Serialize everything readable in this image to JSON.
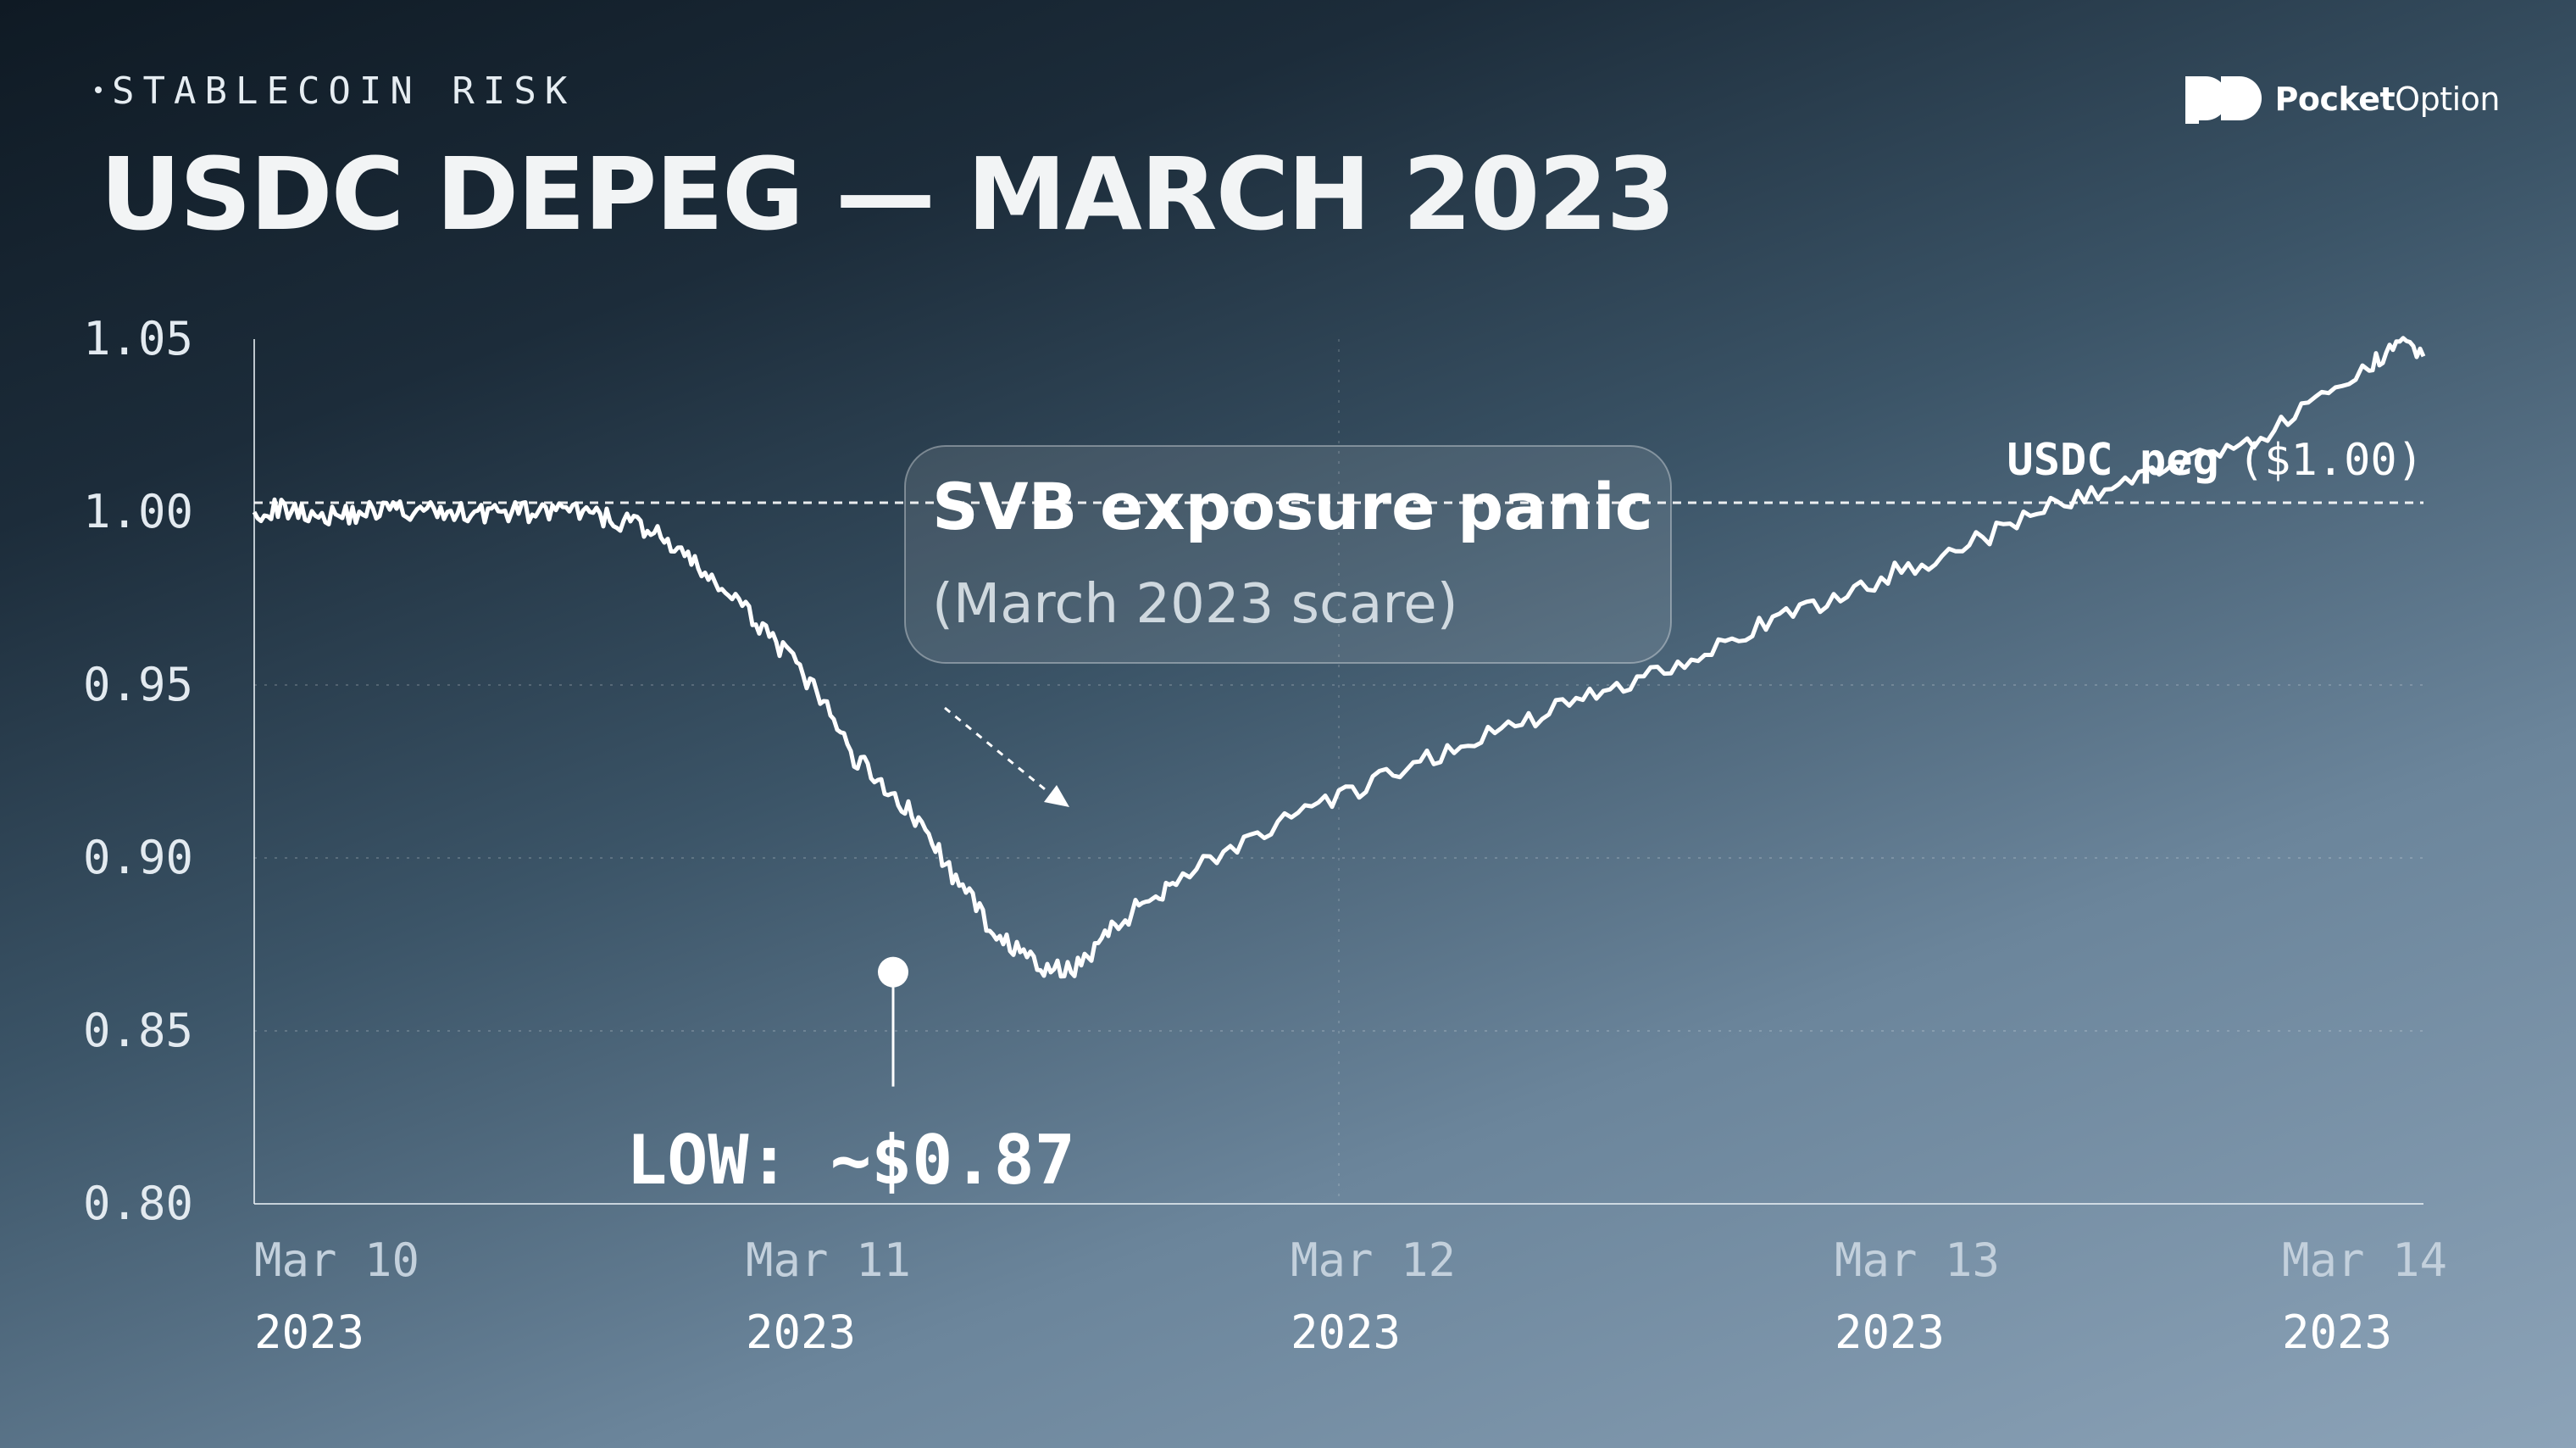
{
  "header": {
    "kicker": "STABLECOIN RISK",
    "title": "USDC DEPEG — MARCH 2023"
  },
  "brand": {
    "name_bold": "Pocket",
    "name_regular": "Option",
    "icon": "pocketoption-logo-icon"
  },
  "colors": {
    "line": "#ffffff",
    "peg_line": "#ffffff",
    "text_muted": "#c7d5e0"
  },
  "chart_data": {
    "type": "line",
    "title": "USDC DEPEG — MARCH 2023",
    "xlabel": "",
    "ylabel": "",
    "ylim": [
      0.8,
      1.05
    ],
    "y_ticks": [
      "1.05",
      "1.00",
      "0.95",
      "0.90",
      "0.85",
      "0.80"
    ],
    "x_ticks": [
      {
        "label": "Mar 10",
        "year": "2023",
        "x": 0
      },
      {
        "label": "Mar 11",
        "year": "2023",
        "x": 1
      },
      {
        "label": "Mar 12",
        "year": "2023",
        "x": 2
      },
      {
        "label": "Mar 13",
        "year": "2023",
        "x": 3
      },
      {
        "label": "Mar 14",
        "year": "2023",
        "x": 4
      }
    ],
    "grid": "dotted",
    "series": [
      {
        "points": [
          [
            0.0,
            1.0
          ],
          [
            0.05,
            1.001
          ],
          [
            0.1,
            1.0
          ],
          [
            0.15,
            0.999
          ],
          [
            0.2,
            1.0
          ],
          [
            0.25,
            1.001
          ],
          [
            0.3,
            1.0
          ],
          [
            0.35,
            1.0
          ],
          [
            0.4,
            1.0
          ],
          [
            0.45,
            1.0
          ],
          [
            0.5,
            1.0
          ],
          [
            0.55,
            1.0
          ],
          [
            0.6,
            1.0
          ],
          [
            0.65,
            0.998
          ],
          [
            0.7,
            0.997
          ],
          [
            0.75,
            0.993
          ],
          [
            0.8,
            0.986
          ],
          [
            0.85,
            0.98
          ],
          [
            0.9,
            0.972
          ],
          [
            0.95,
            0.965
          ],
          [
            1.0,
            0.955
          ],
          [
            1.05,
            0.945
          ],
          [
            1.1,
            0.93
          ],
          [
            1.15,
            0.923
          ],
          [
            1.2,
            0.915
          ],
          [
            1.25,
            0.905
          ],
          [
            1.3,
            0.892
          ],
          [
            1.35,
            0.882
          ],
          [
            1.4,
            0.874
          ],
          [
            1.45,
            0.868
          ],
          [
            1.5,
            0.867
          ],
          [
            1.55,
            0.874
          ],
          [
            1.6,
            0.882
          ],
          [
            1.65,
            0.888
          ],
          [
            1.7,
            0.894
          ],
          [
            1.8,
            0.903
          ],
          [
            1.9,
            0.91
          ],
          [
            2.0,
            0.917
          ],
          [
            2.1,
            0.924
          ],
          [
            2.2,
            0.931
          ],
          [
            2.3,
            0.937
          ],
          [
            2.4,
            0.943
          ],
          [
            2.5,
            0.949
          ],
          [
            2.6,
            0.955
          ],
          [
            2.7,
            0.962
          ],
          [
            2.8,
            0.968
          ],
          [
            2.9,
            0.974
          ],
          [
            3.0,
            0.981
          ],
          [
            3.1,
            0.987
          ],
          [
            3.2,
            0.993
          ],
          [
            3.3,
            1.001
          ],
          [
            3.4,
            1.006
          ],
          [
            3.5,
            1.011
          ],
          [
            3.6,
            1.017
          ],
          [
            3.7,
            1.022
          ],
          [
            3.8,
            1.031
          ],
          [
            3.9,
            1.041
          ],
          [
            3.95,
            1.051
          ],
          [
            4.0,
            1.045
          ]
        ]
      }
    ],
    "peg": {
      "value": 1.0,
      "label": "USDC peg",
      "value_label": "($1.00)"
    },
    "annotations": {
      "callout_title": "SVB exposure panic",
      "callout_subtitle": "(March 2023 scare)",
      "low_label": "LOW: ~$0.87",
      "low_point": [
        1.5,
        0.867
      ]
    }
  }
}
